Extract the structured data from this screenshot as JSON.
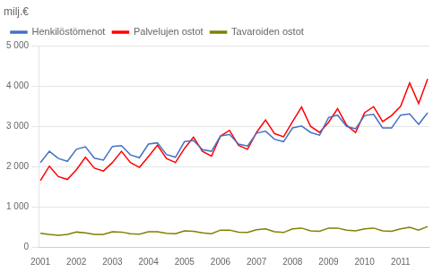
{
  "chart_data": {
    "type": "line",
    "ylabel": "milj.€",
    "x": [
      2001,
      2001.25,
      2001.5,
      2001.75,
      2002,
      2002.25,
      2002.5,
      2002.75,
      2003,
      2003.25,
      2003.5,
      2003.75,
      2004,
      2004.25,
      2004.5,
      2004.75,
      2005,
      2005.25,
      2005.5,
      2005.75,
      2006,
      2006.25,
      2006.5,
      2006.75,
      2007,
      2007.25,
      2007.5,
      2007.75,
      2008,
      2008.25,
      2008.5,
      2008.75,
      2009,
      2009.25,
      2009.5,
      2009.75,
      2010,
      2010.25,
      2010.5,
      2010.75,
      2011,
      2011.25,
      2011.5,
      2011.75
    ],
    "series": [
      {
        "name": "Henkilöstömenot",
        "color": "#4472C4",
        "values": [
          2100,
          2380,
          2200,
          2130,
          2430,
          2490,
          2210,
          2160,
          2500,
          2520,
          2290,
          2220,
          2560,
          2590,
          2300,
          2230,
          2620,
          2650,
          2420,
          2380,
          2760,
          2800,
          2560,
          2510,
          2830,
          2880,
          2680,
          2620,
          2960,
          3010,
          2850,
          2780,
          3220,
          3280,
          3000,
          2940,
          3270,
          3300,
          2960,
          2960,
          3280,
          3310,
          3050,
          3340
        ]
      },
      {
        "name": "Palvelujen ostot",
        "color": "#FF0000",
        "values": [
          1650,
          2010,
          1750,
          1680,
          1920,
          2230,
          1960,
          1890,
          2100,
          2380,
          2100,
          1980,
          2250,
          2530,
          2200,
          2100,
          2450,
          2730,
          2380,
          2260,
          2760,
          2900,
          2530,
          2430,
          2850,
          3160,
          2820,
          2740,
          3120,
          3480,
          3000,
          2850,
          3100,
          3440,
          3030,
          2850,
          3340,
          3490,
          3120,
          3270,
          3500,
          4080,
          3570,
          4180
        ]
      },
      {
        "name": "Tavaroiden ostot",
        "color": "#808000",
        "values": [
          340,
          310,
          290,
          310,
          370,
          350,
          310,
          310,
          380,
          370,
          330,
          320,
          380,
          380,
          340,
          330,
          400,
          390,
          350,
          330,
          420,
          420,
          370,
          360,
          430,
          450,
          380,
          360,
          450,
          470,
          400,
          390,
          470,
          470,
          420,
          400,
          450,
          470,
          400,
          390,
          450,
          490,
          420,
          510
        ]
      }
    ],
    "xlim": [
      2000.95,
      2011.8
    ],
    "xticks": [
      2001,
      2002,
      2003,
      2004,
      2005,
      2006,
      2007,
      2008,
      2009,
      2010,
      2011
    ],
    "ylim": [
      0,
      5000
    ],
    "yticks": [
      0,
      {
        "value": 1000,
        "label": "1 000"
      },
      {
        "value": 2000,
        "label": "2 000"
      },
      {
        "value": 3000,
        "label": "3 000"
      },
      {
        "value": 4000,
        "label": "4 000"
      },
      {
        "value": 5000,
        "label": "5 000"
      }
    ],
    "grid": "y",
    "legend": "upper left"
  }
}
